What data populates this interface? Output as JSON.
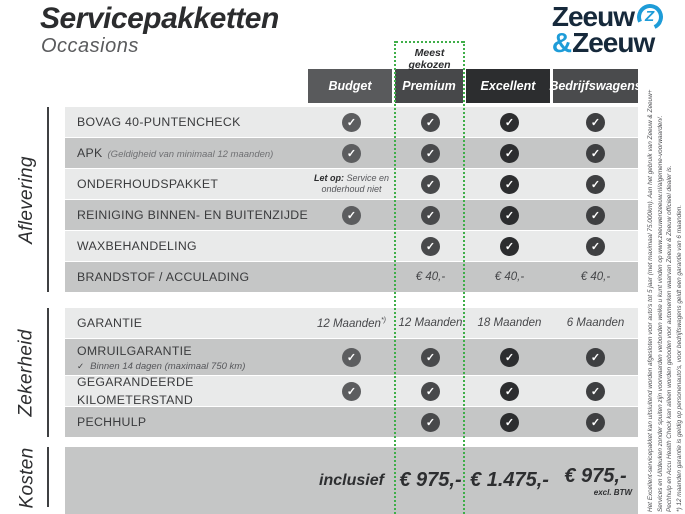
{
  "page": {
    "title": "Servicepakketten",
    "subtitle": "Occasions"
  },
  "logo": {
    "word1": "Zeeuw",
    "amp": "&",
    "word2": "Zeeuw",
    "z_glyph": "Z"
  },
  "badge": {
    "label": "Meest gekozen"
  },
  "colors": {
    "accent_green": "#3fae49",
    "light_row": "#e9eaea",
    "dark_row": "#c5c6c6",
    "logo_navy": "#16293b",
    "logo_blue": "#1e9cd8"
  },
  "icons": {
    "check": "✓",
    "sub_tick": "✓"
  },
  "columns": [
    {
      "key": "budget",
      "label": "Budget",
      "header_bg": "#595a5c",
      "check_bg": "#5c5d5f"
    },
    {
      "key": "premium",
      "label": "Premium",
      "header_bg": "#47484a",
      "check_bg": "#48494b"
    },
    {
      "key": "excellent",
      "label": "Excellent",
      "header_bg": "#2c2d2f",
      "check_bg": "#2c2d2f"
    },
    {
      "key": "bedrijfswagens",
      "label": "Bedrijfswagens",
      "header_bg": "#4a4b4d",
      "check_bg": "#3e3f41"
    }
  ],
  "sections": [
    {
      "name": "aflevering",
      "label": "Aflevering",
      "rows": [
        {
          "label": "BOVAG 40-PUNTENCHECK",
          "cells": [
            "check",
            "check",
            "check",
            "check"
          ]
        },
        {
          "label": "APK",
          "label_note": "(Geldigheid van minimaal 12 maanden)",
          "cells": [
            "check",
            "check",
            "check",
            "check"
          ]
        },
        {
          "label": "ONDERHOUDSPAKKET",
          "cells": [
            {
              "type": "note",
              "bold": "Let op:",
              "text": "Service en onderhoud niet"
            },
            "check",
            "check",
            "check"
          ]
        },
        {
          "label": "REINIGING BINNEN- EN BUITENZIJDE",
          "cells": [
            "check",
            "check",
            "check",
            "check"
          ]
        },
        {
          "label": "WAXBEHANDELING",
          "cells": [
            "",
            "check",
            "check",
            "check"
          ]
        },
        {
          "label": "BRANDSTOF / ACCULADING",
          "cells": [
            "",
            "€ 40,-",
            "€ 40,-",
            "€ 40,-"
          ]
        }
      ]
    },
    {
      "name": "zekerheid",
      "label": "Zekerheid",
      "rows": [
        {
          "label": "GARANTIE",
          "cells": [
            {
              "type": "text",
              "text": "12 Maanden",
              "sup": "*)"
            },
            "12 Maanden",
            "18 Maanden",
            "6 Maanden"
          ]
        },
        {
          "label": "OMRUILGARANTIE",
          "sub_note": "Binnen 14 dagen (maximaal 750 km)",
          "tall": true,
          "cells": [
            "check",
            "check",
            "check",
            "check"
          ]
        },
        {
          "label": "GEGARANDEERDE KILOMETERSTAND",
          "cells": [
            "check",
            "check",
            "check",
            "check"
          ]
        },
        {
          "label": "PECHHULP",
          "cells": [
            "",
            "check",
            "check",
            "check"
          ]
        }
      ]
    }
  ],
  "kosten": {
    "label": "Kosten",
    "budget_value": "inclusief",
    "premium_value": "€ 975,-",
    "excellent_value": "€ 1.475,-",
    "bedrijfswagens_value": "€ 975,-",
    "bedrijfswagens_note": "excl. BTW"
  },
  "footnotes": [
    "Het Excellent-servicepakket kan uitsluitend worden afgesloten voor auto's tot 5 jaar (met maximaal 75.000km). Aan het gebruik van Zeeuw & Zeeuw+",
    "Services en Uitdeuken zonder spuiten zijn voorwaarden verbonden welke u kunt vinden op www.zeeuwenzeeuw.nl/algemene-voorwaarden/.",
    "Pechhulp en Accu Health Check kan alleen worden geboden voor automerken waarvan Zeeuw & Zeeuw officieel dealer is.",
    "*) 12 maanden garantie is geldig op personenauto's, voor bedrijfswagens geldt een garantie van 6 maanden."
  ]
}
